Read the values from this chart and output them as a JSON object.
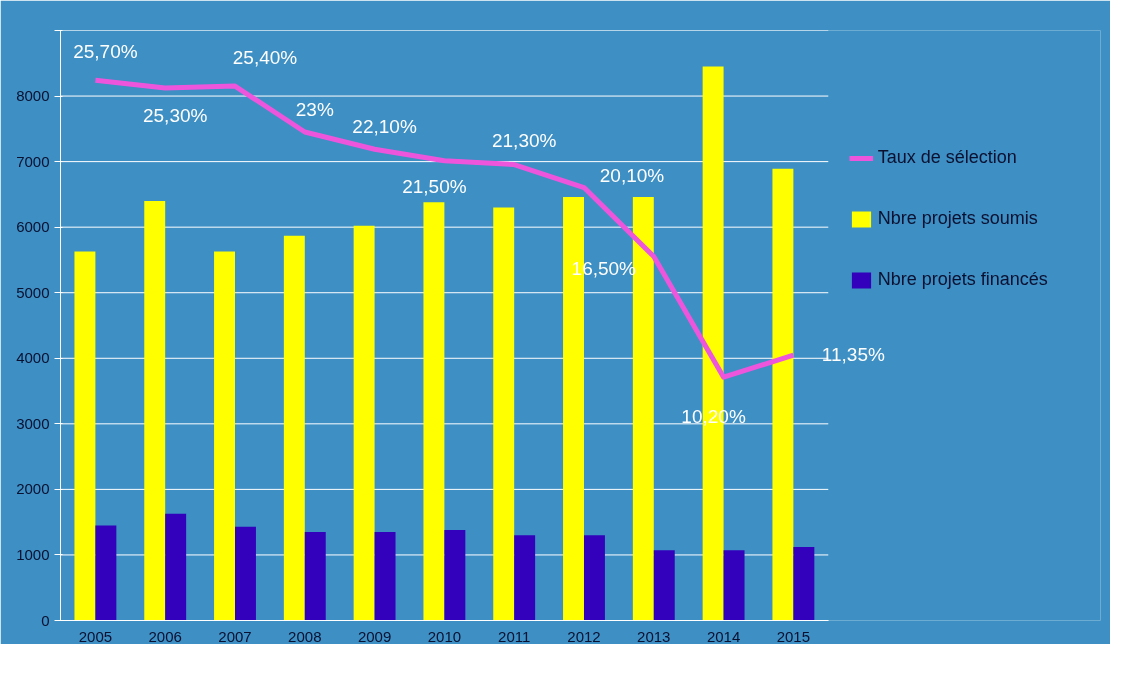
{
  "chart_data": {
    "type": "bar",
    "categories": [
      "2005",
      "2006",
      "2007",
      "2008",
      "2009",
      "2010",
      "2011",
      "2012",
      "2013",
      "2014",
      "2015"
    ],
    "series": [
      {
        "name": "Nbre projets soumis",
        "color": "#ffff00",
        "values": [
          5630,
          6400,
          5630,
          5870,
          6020,
          6380,
          6300,
          6460,
          6460,
          8450,
          6890
        ]
      },
      {
        "name": "Nbre projets financés",
        "color": "#3300bb",
        "values": [
          1450,
          1630,
          1430,
          1350,
          1350,
          1380,
          1300,
          1300,
          1070,
          1070,
          1120
        ]
      },
      {
        "name": "Taux de sélection",
        "type": "line",
        "axis": "y2",
        "color": "#ee55dd",
        "values": [
          25.7,
          25.3,
          25.4,
          23,
          22.1,
          21.5,
          21.3,
          20.1,
          16.5,
          10.2,
          11.35
        ],
        "value_labels": [
          "25,70%",
          "25,30%",
          "25,40%",
          "23%",
          "22,10%",
          "21,50%",
          "21,30%",
          "20,10%",
          "16,50%",
          "10,20%",
          "11,35%"
        ]
      }
    ],
    "ylim": [
      0,
      9000
    ],
    "yticks": [
      0,
      1000,
      2000,
      3000,
      4000,
      5000,
      6000,
      7000,
      8000,
      {
        "value": 9000,
        "label": null
      }
    ],
    "y2lim": [
      -2.5,
      28.3
    ],
    "grid": "y",
    "legend": "right",
    "marker": "none"
  }
}
